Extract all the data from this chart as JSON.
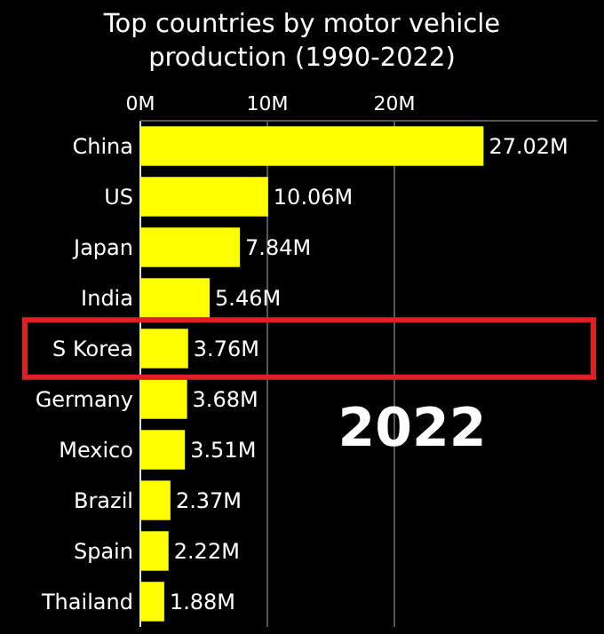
{
  "chart_data": {
    "type": "bar",
    "orientation": "horizontal",
    "title": "Top countries by motor vehicle production (1990-2022)",
    "categories": [
      "China",
      "US",
      "Japan",
      "India",
      "S Korea",
      "Germany",
      "Mexico",
      "Brazil",
      "Spain",
      "Thailand"
    ],
    "values": [
      27.02,
      10.06,
      7.84,
      5.46,
      3.76,
      3.68,
      3.51,
      2.37,
      2.22,
      1.88
    ],
    "value_labels": [
      "27.02M",
      "10.06M",
      "7.84M",
      "5.46M",
      "3.76M",
      "3.68M",
      "3.51M",
      "2.37M",
      "2.22M",
      "1.88M"
    ],
    "color": "#ffff00",
    "xlim": [
      0,
      36
    ],
    "xticks": [
      {
        "value": 0,
        "label": "0M"
      },
      {
        "value": 10,
        "label": "10M"
      },
      {
        "value": 20,
        "label": "20M"
      }
    ],
    "grid": "x",
    "annotations": [
      "2022"
    ]
  }
}
